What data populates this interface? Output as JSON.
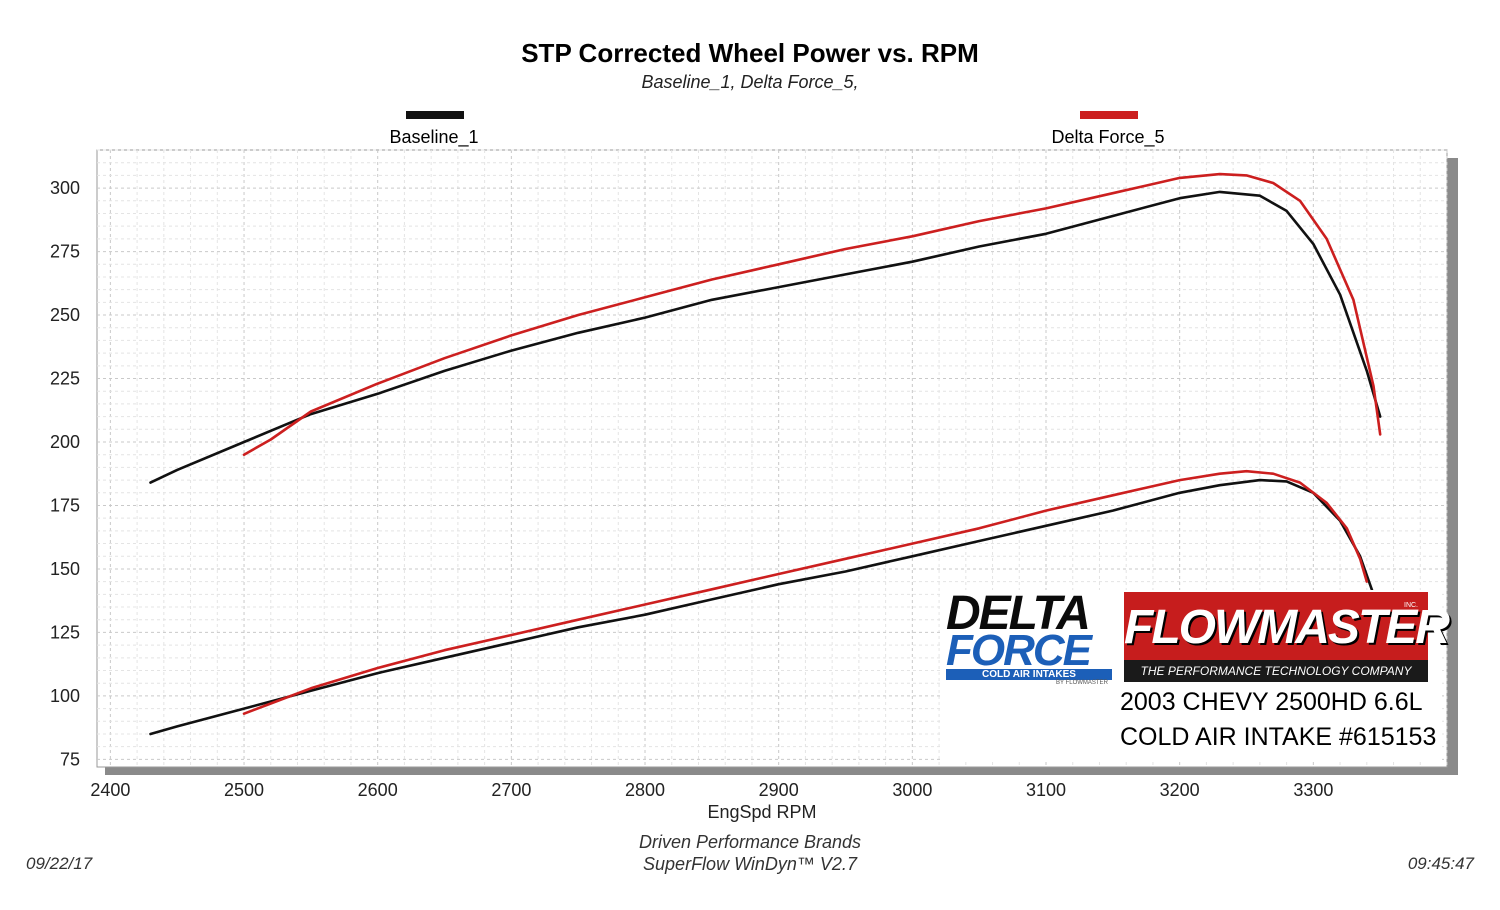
{
  "chart_data": {
    "type": "line",
    "title": "STP Corrected Wheel Power vs. RPM",
    "subtitle": "Baseline_1, Delta Force_5,",
    "xlabel": "EngSpd  RPM",
    "ylabel": "",
    "xlim": [
      2390,
      3400
    ],
    "ylim": [
      72,
      315
    ],
    "x_ticks": [
      2400,
      2500,
      2600,
      2700,
      2800,
      2900,
      3000,
      3100,
      3200,
      3300
    ],
    "y_ticks": [
      75,
      100,
      125,
      150,
      175,
      200,
      225,
      250,
      275,
      300
    ],
    "grid": true,
    "legend": [
      {
        "name": "Baseline_1",
        "color": "#111111"
      },
      {
        "name": "Delta Force_5",
        "color": "#cc1f1f"
      }
    ],
    "series": [
      {
        "name": "Baseline_1 Horsepower",
        "legend": "Baseline_1",
        "color": "#111111",
        "x": [
          2430,
          2450,
          2500,
          2550,
          2600,
          2650,
          2700,
          2750,
          2800,
          2850,
          2900,
          2950,
          3000,
          3050,
          3100,
          3150,
          3200,
          3230,
          3260,
          3280,
          3300,
          3320,
          3340,
          3350
        ],
        "y": [
          184,
          189,
          200,
          211,
          219,
          228,
          236,
          243,
          249,
          256,
          261,
          266,
          271,
          277,
          282,
          289,
          296,
          298.5,
          297,
          291,
          278,
          258,
          228,
          210
        ]
      },
      {
        "name": "Delta Force_5 Horsepower",
        "legend": "Delta Force_5",
        "color": "#cc1f1f",
        "x": [
          2500,
          2520,
          2550,
          2600,
          2650,
          2700,
          2750,
          2800,
          2850,
          2900,
          2950,
          3000,
          3050,
          3100,
          3150,
          3200,
          3230,
          3250,
          3270,
          3290,
          3310,
          3330,
          3345,
          3350
        ],
        "y": [
          195,
          201,
          212,
          223,
          233,
          242,
          250,
          257,
          264,
          270,
          276,
          281,
          287,
          292,
          298,
          304,
          305.5,
          305,
          302,
          295,
          280,
          256,
          222,
          203
        ]
      },
      {
        "name": "Baseline_1 Torque",
        "legend": "Baseline_1",
        "color": "#111111",
        "x": [
          2430,
          2450,
          2500,
          2550,
          2600,
          2650,
          2700,
          2750,
          2800,
          2850,
          2900,
          2950,
          3000,
          3050,
          3100,
          3150,
          3200,
          3230,
          3260,
          3280,
          3300,
          3320,
          3335,
          3345
        ],
        "y": [
          85,
          88,
          95,
          102,
          109,
          115,
          121,
          127,
          132,
          138,
          144,
          149,
          155,
          161,
          167,
          173,
          180,
          183,
          185,
          184.5,
          180,
          169,
          155,
          140
        ]
      },
      {
        "name": "Delta Force_5 Torque",
        "legend": "Delta Force_5",
        "color": "#cc1f1f",
        "x": [
          2500,
          2520,
          2550,
          2600,
          2650,
          2700,
          2750,
          2800,
          2850,
          2900,
          2950,
          3000,
          3050,
          3100,
          3150,
          3200,
          3230,
          3250,
          3270,
          3290,
          3310,
          3325,
          3335,
          3340
        ],
        "y": [
          93,
          97,
          103,
          111,
          118,
          124,
          130,
          136,
          142,
          148,
          154,
          160,
          166,
          173,
          179,
          185,
          187.5,
          188.5,
          187.5,
          184,
          176,
          166,
          154,
          145
        ]
      }
    ]
  },
  "legend_labels": {
    "baseline": "Baseline_1",
    "delta": "Delta Force_5"
  },
  "footer": {
    "company": "Driven Performance Brands",
    "software": "SuperFlow WinDyn™  V2.7",
    "date": "09/22/17",
    "time": "09:45:47"
  },
  "overlay": {
    "df_delta": "DELTA",
    "df_force": "FORCE",
    "df_sub": "COLD AIR INTAKES",
    "df_by": "BY FLOWMASTER",
    "fm_word": "FLOWMASTER",
    "fm_inc": "INC.",
    "fm_tag": "THE PERFORMANCE TECHNOLOGY COMPANY",
    "vehicle_line1": "2003 CHEVY 2500HD 6.6L",
    "vehicle_line2": "COLD AIR INTAKE #615153"
  }
}
